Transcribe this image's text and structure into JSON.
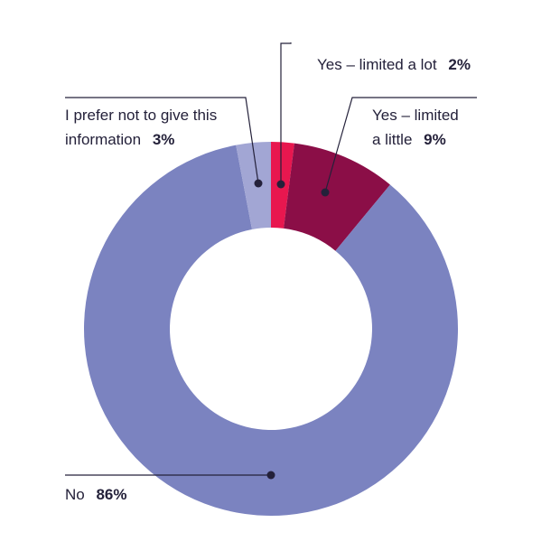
{
  "chart_data": {
    "type": "pie",
    "style": "donut",
    "title": "",
    "colors": {
      "Yes – limited a lot": "#e8174f",
      "Yes – limited a little": "#8b0e47",
      "No": "#7b83c0",
      "I prefer not to give this information": "#a2a6d4",
      "text": "#24213a"
    },
    "order": [
      "Yes – limited a lot",
      "Yes – limited a little",
      "No",
      "I prefer not to give this information"
    ],
    "slices": [
      {
        "label": "Yes – limited a lot",
        "value": 2,
        "display": "2%"
      },
      {
        "label": "Yes – limited a little",
        "value": 9,
        "display": "9%"
      },
      {
        "label": "No",
        "value": 86,
        "display": "86%"
      },
      {
        "label": "I prefer not to give this information",
        "value": 3,
        "display": "3%"
      }
    ],
    "annotations": {
      "limited_lot": {
        "text": "Yes – limited a lot",
        "pct": "2%"
      },
      "limited_little": {
        "line1": "Yes – limited",
        "line2": "a little",
        "pct": "9%"
      },
      "no": {
        "text": "No",
        "pct": "86%"
      },
      "prefer_not": {
        "line1": "I prefer not to give this",
        "line2": "information",
        "pct": "3%"
      }
    }
  }
}
